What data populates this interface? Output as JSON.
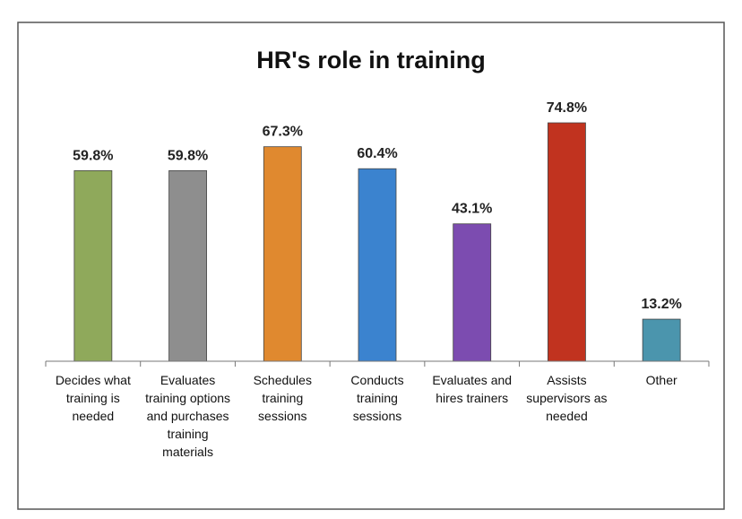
{
  "chart_data": {
    "type": "bar",
    "title": "HR's role in training",
    "categories": [
      "Decides what training is needed",
      "Evaluates training options and purchases training materials",
      "Schedules training sessions",
      "Conducts training sessions",
      "Evaluates and hires trainers",
      "Assists supervisors as needed",
      "Other"
    ],
    "values": [
      59.8,
      59.8,
      67.3,
      60.4,
      43.1,
      74.8,
      13.2
    ],
    "value_labels": [
      "59.8%",
      "59.8%",
      "67.3%",
      "60.4%",
      "43.1%",
      "74.8%",
      "13.2%"
    ],
    "colors": [
      "#8fa95b",
      "#8e8e8e",
      "#e0892f",
      "#3b83cf",
      "#7c4cb0",
      "#c1331f",
      "#4b95ad"
    ]
  }
}
